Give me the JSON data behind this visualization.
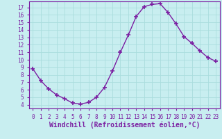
{
  "x": [
    0,
    1,
    2,
    3,
    4,
    5,
    6,
    7,
    8,
    9,
    10,
    11,
    12,
    13,
    14,
    15,
    16,
    17,
    18,
    19,
    20,
    21,
    22,
    23
  ],
  "y": [
    8.8,
    7.2,
    6.1,
    5.3,
    4.8,
    4.2,
    4.1,
    4.3,
    5.0,
    6.3,
    8.5,
    11.0,
    13.3,
    15.8,
    17.1,
    17.4,
    17.5,
    16.3,
    14.8,
    13.1,
    12.2,
    11.2,
    10.3,
    9.8
  ],
  "line_color": "#7b1fa2",
  "marker": "+",
  "markersize": 4,
  "markeredgewidth": 1.2,
  "linewidth": 1.0,
  "background_color": "#c8eef0",
  "grid_color": "#aadddd",
  "axis_color": "#7b1fa2",
  "xlabel": "Windchill (Refroidissement éolien,°C)",
  "ylabel": "",
  "xlim": [
    -0.5,
    23.5
  ],
  "ylim": [
    3.5,
    17.8
  ],
  "yticks": [
    4,
    5,
    6,
    7,
    8,
    9,
    10,
    11,
    12,
    13,
    14,
    15,
    16,
    17
  ],
  "xticks": [
    0,
    1,
    2,
    3,
    4,
    5,
    6,
    7,
    8,
    9,
    10,
    11,
    12,
    13,
    14,
    15,
    16,
    17,
    18,
    19,
    20,
    21,
    22,
    23
  ],
  "tick_fontsize": 5.5,
  "xlabel_fontsize": 7.0
}
